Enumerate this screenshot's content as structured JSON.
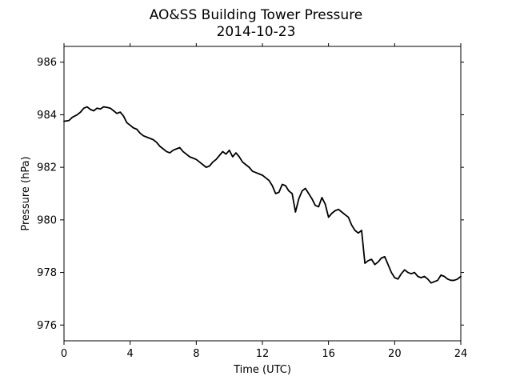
{
  "chart_data": {
    "type": "line",
    "title": "AO&SS Building Tower Pressure",
    "subtitle": "2014-10-23",
    "xlabel": "Time (UTC)",
    "ylabel": "Pressure (hPa)",
    "xlim": [
      0,
      24
    ],
    "ylim": [
      975.4,
      986.6
    ],
    "xticks": [
      0,
      4,
      8,
      12,
      16,
      20,
      24
    ],
    "yticks": [
      976,
      978,
      980,
      982,
      984,
      986
    ],
    "grid": false,
    "line_color": "#000000",
    "series": [
      {
        "x": [
          0,
          0.3,
          0.5,
          0.8,
          1.0,
          1.2,
          1.4,
          1.6,
          1.8,
          2.0,
          2.2,
          2.4,
          2.6,
          2.8,
          3.0,
          3.2,
          3.4,
          3.6,
          3.8,
          4.0,
          4.2,
          4.4,
          4.6,
          4.8,
          5.0,
          5.2,
          5.4,
          5.6,
          5.8,
          6.0,
          6.2,
          6.4,
          6.6,
          6.8,
          7.0,
          7.2,
          7.4,
          7.6,
          7.8,
          8.0,
          8.2,
          8.4,
          8.6,
          8.8,
          9.0,
          9.2,
          9.4,
          9.6,
          9.8,
          10.0,
          10.2,
          10.4,
          10.6,
          10.8,
          11.0,
          11.2,
          11.4,
          11.6,
          11.8,
          12.0,
          12.2,
          12.4,
          12.6,
          12.8,
          13.0,
          13.2,
          13.4,
          13.6,
          13.8,
          14.0,
          14.2,
          14.4,
          14.6,
          14.8,
          15.0,
          15.2,
          15.4,
          15.6,
          15.8,
          16.0,
          16.2,
          16.4,
          16.6,
          16.8,
          17.0,
          17.2,
          17.4,
          17.6,
          17.8,
          18.0,
          18.2,
          18.4,
          18.6,
          18.8,
          19.0,
          19.2,
          19.4,
          19.6,
          19.8,
          20.0,
          20.2,
          20.4,
          20.6,
          20.8,
          21.0,
          21.2,
          21.4,
          21.6,
          21.8,
          22.0,
          22.2,
          22.4,
          22.6,
          22.8,
          23.0,
          23.2,
          23.4,
          23.6,
          23.8,
          24.0
        ],
        "values": [
          983.75,
          983.78,
          983.9,
          984.0,
          984.1,
          984.25,
          984.3,
          984.2,
          984.15,
          984.25,
          984.22,
          984.3,
          984.28,
          984.25,
          984.15,
          984.05,
          984.1,
          983.95,
          983.7,
          983.6,
          983.5,
          983.45,
          983.3,
          983.2,
          983.15,
          983.1,
          983.05,
          982.95,
          982.8,
          982.7,
          982.6,
          982.55,
          982.65,
          982.7,
          982.75,
          982.6,
          982.5,
          982.4,
          982.35,
          982.3,
          982.2,
          982.1,
          982.0,
          982.05,
          982.2,
          982.3,
          982.45,
          982.6,
          982.5,
          982.65,
          982.4,
          982.55,
          982.4,
          982.2,
          982.1,
          982.0,
          981.85,
          981.8,
          981.75,
          981.7,
          981.6,
          981.5,
          981.3,
          981.0,
          981.05,
          981.35,
          981.3,
          981.1,
          981.0,
          980.3,
          980.8,
          981.1,
          981.2,
          981.0,
          980.8,
          980.55,
          980.5,
          980.85,
          980.6,
          980.1,
          980.25,
          980.35,
          980.4,
          980.3,
          980.2,
          980.1,
          979.8,
          979.6,
          979.5,
          979.6,
          978.35,
          978.45,
          978.5,
          978.3,
          978.4,
          978.55,
          978.6,
          978.3,
          978.0,
          977.8,
          977.75,
          977.95,
          978.1,
          978.0,
          977.95,
          978.0,
          977.85,
          977.8,
          977.85,
          977.75,
          977.6,
          977.65,
          977.7,
          977.9,
          977.85,
          977.75,
          977.7,
          977.7,
          977.75,
          977.85
        ]
      }
    ]
  }
}
